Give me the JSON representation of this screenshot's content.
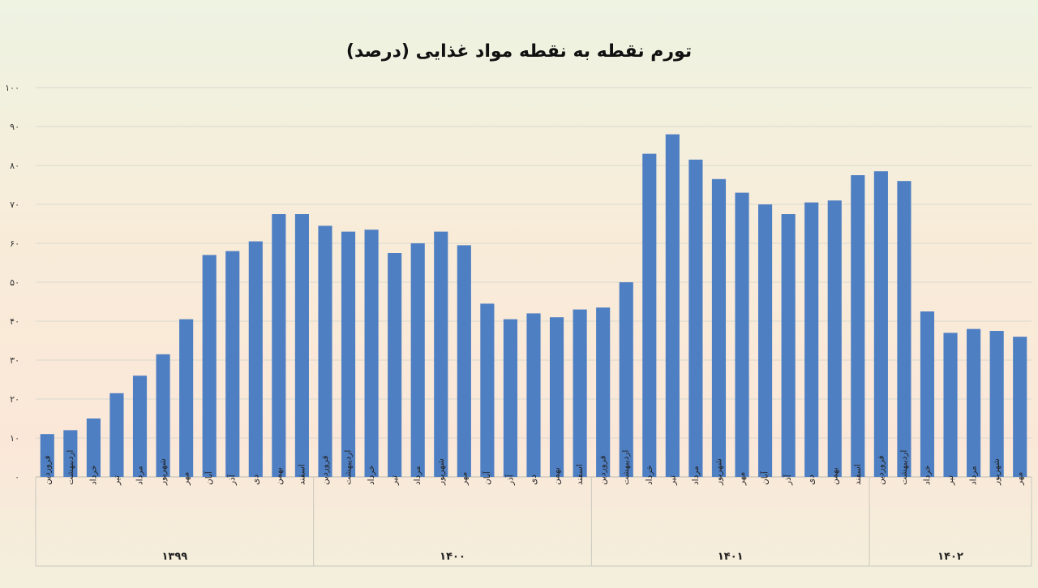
{
  "chart_data": {
    "type": "bar",
    "title": "تورم نقطه به نقطه مواد غذایی (درصد)",
    "ylim": [
      0,
      100
    ],
    "yticks": [
      "۰",
      "۱۰",
      "۲۰",
      "۳۰",
      "۴۰",
      "۵۰",
      "۶۰",
      "۷۰",
      "۸۰",
      "۹۰",
      "۱۰۰"
    ],
    "grid": true,
    "bar_color": "#4f7fc3",
    "groups": [
      {
        "year": "۱۳۹۹",
        "months": [
          "فروردین",
          "اردیبهشت",
          "خرداد",
          "تیر",
          "مرداد",
          "شهریور",
          "مهر",
          "آبان",
          "آذر",
          "دی",
          "بهمن",
          "اسفند"
        ],
        "values": [
          11,
          12,
          15,
          21.5,
          26,
          31.5,
          40.5,
          57,
          58,
          60.5,
          67.5,
          67.5
        ]
      },
      {
        "year": "۱۴۰۰",
        "months": [
          "فروردین",
          "اردیبهشت",
          "خرداد",
          "تیر",
          "مرداد",
          "شهریور",
          "مهر",
          "آبان",
          "آذر",
          "دی",
          "بهمن",
          "اسفند"
        ],
        "values": [
          64.5,
          63,
          63.5,
          57.5,
          60,
          63,
          59.5,
          44.5,
          40.5,
          42,
          41,
          43
        ]
      },
      {
        "year": "۱۴۰۱",
        "months": [
          "فروردین",
          "اردیبهشت",
          "خرداد",
          "تیر",
          "مرداد",
          "شهریور",
          "مهر",
          "آبان",
          "آذر",
          "دی",
          "بهمن",
          "اسفند"
        ],
        "values": [
          43.5,
          50,
          83,
          88,
          81.5,
          76.5,
          73,
          70,
          67.5,
          70.5,
          71,
          77.5
        ]
      },
      {
        "year": "۱۴۰۲",
        "months": [
          "فروردین",
          "اردیبهشت",
          "خرداد",
          "تیر",
          "مرداد",
          "شهریور",
          "مهر"
        ],
        "values": [
          78.5,
          76,
          42.5,
          37,
          38,
          37.5,
          36
        ]
      }
    ]
  }
}
